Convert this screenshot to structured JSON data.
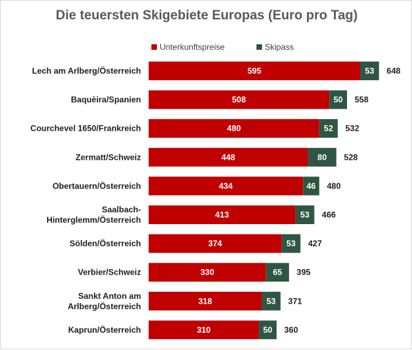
{
  "chart_data": {
    "type": "bar",
    "orientation": "horizontal",
    "stacked": true,
    "title": "Die teuersten Skigebiete Europas (Euro pro Tag)",
    "legend_position": "top",
    "grid": false,
    "xlim": [
      0,
      650
    ],
    "categories": [
      [
        "Lech am Arlberg/Österreich"
      ],
      [
        "Baquèira/Spanien"
      ],
      [
        "Courchevel 1650/Frankreich"
      ],
      [
        "Zermatt/Schweiz"
      ],
      [
        "Obertauern/Österreich"
      ],
      [
        "Saalbach-",
        "Hinterglemm/Österreich"
      ],
      [
        "Sölden/Österreich"
      ],
      [
        "Verbier/Schweiz"
      ],
      [
        "Sankt Anton am",
        "Arlberg/Österreich"
      ],
      [
        "Kaprun/Österreich"
      ]
    ],
    "series": [
      {
        "name": "Unterkunftspreise",
        "color": "#c00000",
        "values": [
          595,
          508,
          480,
          448,
          434,
          413,
          374,
          330,
          318,
          310
        ]
      },
      {
        "name": "Skipass",
        "color": "#2f5543",
        "values": [
          53,
          50,
          52,
          80,
          46,
          53,
          53,
          65,
          53,
          50
        ]
      }
    ],
    "totals": [
      648,
      558,
      532,
      528,
      480,
      466,
      427,
      395,
      371,
      360
    ]
  }
}
